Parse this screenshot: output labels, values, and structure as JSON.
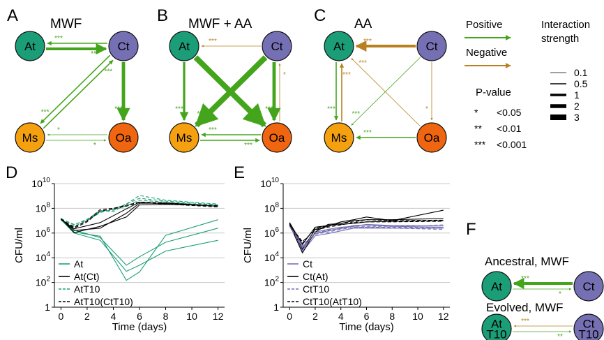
{
  "panels": {
    "A": {
      "letter": "A",
      "title": "MWF"
    },
    "B": {
      "letter": "B",
      "title": "MWF + AA"
    },
    "C": {
      "letter": "C",
      "title": "AA"
    },
    "D": {
      "letter": "D"
    },
    "E": {
      "letter": "E"
    },
    "F": {
      "letter": "F"
    }
  },
  "species": {
    "At": "At",
    "Ct": "Ct",
    "Ms": "Ms",
    "Oa": "Oa"
  },
  "colors": {
    "At": "#1b9e77",
    "Ct": "#7570b3",
    "Ms": "#f5a00f",
    "Oa": "#f0650f",
    "positive": "#44a51c",
    "negative": "#b8801e"
  },
  "legend": {
    "positive": "Positive",
    "negative": "Negative",
    "strength_title": "Interaction\nstrength",
    "strengths": [
      "0.1",
      "0.5",
      "1",
      "2",
      "3"
    ],
    "pvalue_title": "P-value",
    "pvalues": [
      {
        "stars": "*",
        "label": "<0.05"
      },
      {
        "stars": "**",
        "label": "<0.01"
      },
      {
        "stars": "***",
        "label": "<0.001"
      }
    ]
  },
  "networks": {
    "A": [
      {
        "from": "Ct",
        "to": "At",
        "sign": "positive",
        "strength": 1,
        "stars": "***"
      },
      {
        "from": "At",
        "to": "Ct",
        "sign": "positive",
        "strength": 2.5,
        "stars": "***"
      },
      {
        "from": "Ms",
        "to": "Ct",
        "sign": "positive",
        "strength": 1,
        "stars": "***"
      },
      {
        "from": "Ct",
        "to": "Ms",
        "sign": "positive",
        "strength": 1,
        "stars": "***"
      },
      {
        "from": "Ct",
        "to": "Oa",
        "sign": "positive",
        "strength": 3,
        "stars": "***"
      },
      {
        "from": "Ms",
        "to": "Oa",
        "sign": "positive",
        "strength": 0.5,
        "stars": "*"
      },
      {
        "from": "Oa",
        "to": "Ms",
        "sign": "positive",
        "strength": 0.5,
        "stars": "*"
      }
    ],
    "B": [
      {
        "from": "Ct",
        "to": "At",
        "sign": "negative",
        "strength": 0.5,
        "stars": "***"
      },
      {
        "from": "At",
        "to": "Ms",
        "sign": "positive",
        "strength": 2,
        "stars": "***"
      },
      {
        "from": "At",
        "to": "Oa",
        "sign": "positive",
        "strength": 5,
        "stars": "***"
      },
      {
        "from": "Ct",
        "to": "Ms",
        "sign": "positive",
        "strength": 5,
        "stars": "***"
      },
      {
        "from": "Oa",
        "to": "Ct",
        "sign": "negative",
        "strength": 0.5,
        "stars": "*"
      },
      {
        "from": "Ct",
        "to": "Oa",
        "sign": "positive",
        "strength": 3,
        "stars": "***"
      },
      {
        "from": "Ms",
        "to": "Oa",
        "sign": "positive",
        "strength": 1,
        "stars": "***"
      },
      {
        "from": "Oa",
        "to": "Ms",
        "sign": "positive",
        "strength": 1,
        "stars": "***"
      }
    ],
    "C": [
      {
        "from": "Ct",
        "to": "At",
        "sign": "negative",
        "strength": 2.5,
        "stars": "***"
      },
      {
        "from": "Ms",
        "to": "At",
        "sign": "negative",
        "strength": 1,
        "stars": "***"
      },
      {
        "from": "At",
        "to": "Ms",
        "sign": "positive",
        "strength": 1,
        "stars": "***"
      },
      {
        "from": "Oa",
        "to": "At",
        "sign": "negative",
        "strength": 0.5,
        "stars": "***"
      },
      {
        "from": "Ct",
        "to": "Ms",
        "sign": "positive",
        "strength": 0.3,
        "stars": "***"
      },
      {
        "from": "Ct",
        "to": "Oa",
        "sign": "negative",
        "strength": 0.5,
        "stars": "*"
      },
      {
        "from": "Oa",
        "to": "Ms",
        "sign": "positive",
        "strength": 1,
        "stars": "***"
      }
    ]
  },
  "panelF": {
    "ancestral_title": "Ancestral, MWF",
    "evolved_title": "Evolved, MWF",
    "ancestral_nodes": [
      "At",
      "Ct"
    ],
    "evolved_nodes": [
      "At\nT10",
      "Ct\nT10"
    ],
    "ancestral_edges": [
      {
        "from": "At",
        "to": "Ct",
        "sign": "positive",
        "strength": 0.5,
        "stars": "*"
      },
      {
        "from": "Ct",
        "to": "At",
        "sign": "positive",
        "strength": 2.5,
        "stars": "***"
      }
    ],
    "evolved_edges": [
      {
        "from": "At",
        "to": "Ct",
        "sign": "positive",
        "strength": 0.5,
        "stars": "**"
      },
      {
        "from": "Ct",
        "to": "At",
        "sign": "negative",
        "strength": 0.5,
        "stars": "***"
      }
    ]
  },
  "chart_data": [
    {
      "type": "line",
      "panel": "D",
      "xlabel": "Time (days)",
      "ylabel": "CFU/ml",
      "x_ticks": [
        0,
        2,
        4,
        6,
        8,
        10,
        12
      ],
      "xlim": [
        -0.5,
        12.5
      ],
      "y_scale": "log10",
      "ylim_exp": [
        0,
        10
      ],
      "y_tick_exps": [
        0,
        2,
        4,
        6,
        8,
        10
      ],
      "grid": "horizontal",
      "legend_position": "bottom-left",
      "series": [
        {
          "name": "At",
          "style": "solid",
          "color": "#1b9e77",
          "x": [
            0,
            1,
            3,
            5,
            6,
            8,
            12
          ],
          "y": [
            [
              13000000,
              1200000,
              550000,
              150,
              700,
              650000,
              12000000
            ],
            [
              15000000,
              1800000,
              420000,
              2500,
              12000,
              180000,
              2500000
            ],
            [
              12000000,
              1000000,
              260000,
              800,
              2500,
              35000,
              260000
            ]
          ]
        },
        {
          "name": "At(Ct)",
          "style": "solid",
          "color": "#000000",
          "x": [
            0,
            1,
            3,
            5,
            6,
            8,
            12
          ],
          "y": [
            [
              14000000,
              1600000,
              2500000,
              40000000,
              260000000,
              260000000,
              160000000
            ],
            [
              16000000,
              1100000,
              3500000,
              20000000,
              190000000,
              210000000,
              170000000
            ],
            [
              13000000,
              2200000,
              7000000,
              90000000,
              320000000,
              230000000,
              150000000
            ]
          ]
        },
        {
          "name": "AtT10",
          "style": "dashed",
          "color": "#1b9e77",
          "x": [
            0,
            1,
            2,
            3,
            4,
            5,
            6,
            8,
            12
          ],
          "y": [
            [
              15000000,
              4500000,
              13000000,
              65000000,
              55000000,
              220000000,
              1100000000,
              450000000,
              220000000
            ],
            [
              12000000,
              3500000,
              10000000,
              45000000,
              85000000,
              220000000,
              650000000,
              380000000,
              190000000
            ],
            [
              14000000,
              5000000,
              11000000,
              55000000,
              70000000,
              160000000,
              450000000,
              320000000,
              160000000
            ]
          ]
        },
        {
          "name": "AtT10(CtT10)",
          "style": "dashed",
          "color": "#000000",
          "x": [
            0,
            1,
            2,
            3,
            4,
            5,
            6,
            8,
            12
          ],
          "y": [
            [
              14000000,
              3000000,
              10000000,
              80000000,
              100000000,
              180000000,
              320000000,
              280000000,
              160000000
            ],
            [
              12000000,
              2500000,
              8000000,
              60000000,
              90000000,
              150000000,
              300000000,
              220000000,
              130000000
            ]
          ]
        }
      ]
    },
    {
      "type": "line",
      "panel": "E",
      "xlabel": "Time (days)",
      "ylabel": "CFU/ml",
      "x_ticks": [
        0,
        2,
        4,
        6,
        8,
        10,
        12
      ],
      "xlim": [
        -0.5,
        12.5
      ],
      "y_scale": "log10",
      "ylim_exp": [
        0,
        10
      ],
      "y_tick_exps": [
        0,
        2,
        4,
        6,
        8,
        10
      ],
      "grid": "horizontal",
      "legend_position": "bottom-left",
      "series": [
        {
          "name": "Ct",
          "style": "solid",
          "color": "#7570b3",
          "x": [
            0,
            1,
            2,
            3,
            4,
            5,
            6,
            8,
            12
          ],
          "y": [
            [
              4500000,
              30000,
              600000,
              900000,
              1500000,
              2500000,
              2500000,
              2500000,
              2500000
            ],
            [
              6000000,
              80000,
              900000,
              1500000,
              2500000,
              4000000,
              4500000,
              3500000,
              3000000
            ],
            [
              5000000,
              40000,
              1200000,
              2000000,
              3000000,
              3500000,
              5000000,
              4000000,
              4000000
            ]
          ]
        },
        {
          "name": "Ct(At)",
          "style": "solid",
          "color": "#000000",
          "x": [
            0,
            1,
            2,
            3,
            4,
            5,
            6,
            8,
            12
          ],
          "y": [
            [
              6000000,
              50000,
              2000000,
              3500000,
              8000000,
              12000000,
              20000000,
              10000000,
              70000000
            ],
            [
              5000000,
              25000,
              1200000,
              5000000,
              6000000,
              10000000,
              12000000,
              12000000,
              15000000
            ],
            [
              7000000,
              120000,
              3000000,
              4000000,
              5000000,
              6000000,
              8000000,
              9000000,
              10000000
            ]
          ]
        },
        {
          "name": "CtT10",
          "style": "dashed",
          "color": "#7570b3",
          "x": [
            0,
            1,
            2,
            3,
            4,
            5,
            6,
            8,
            12
          ],
          "y": [
            [
              4000000,
              60000,
              800000,
              1200000,
              2000000,
              3000000,
              3000000,
              3000000,
              3000000
            ],
            [
              5000000,
              100000,
              1000000,
              1500000,
              2500000,
              3500000,
              3500000,
              3500000,
              4500000
            ],
            [
              3500000,
              70000,
              900000,
              1800000,
              2200000,
              2800000,
              3000000,
              2500000,
              2000000
            ]
          ]
        },
        {
          "name": "CtT10(AtT10)",
          "style": "dashed",
          "color": "#000000",
          "x": [
            0,
            1,
            2,
            3,
            4,
            5,
            6,
            8,
            12
          ],
          "y": [
            [
              5000000,
              150000,
              2500000,
              4000000,
              6000000,
              8000000,
              12000000,
              10000000,
              11000000
            ],
            [
              4500000,
              200000,
              1800000,
              3000000,
              4500000,
              7000000,
              8000000,
              8000000,
              9000000
            ]
          ]
        }
      ]
    }
  ]
}
